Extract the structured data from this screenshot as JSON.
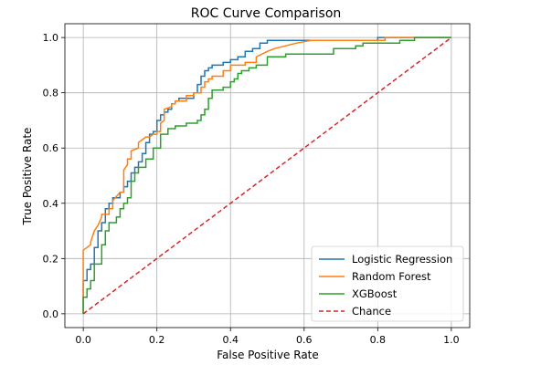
{
  "chart_data": {
    "type": "line",
    "title": "ROC Curve Comparison",
    "xlabel": "False Positive Rate",
    "ylabel": "True Positive Rate",
    "xlim": [
      -0.05,
      1.05
    ],
    "ylim": [
      -0.05,
      1.05
    ],
    "xticks": [
      0.0,
      0.2,
      0.4,
      0.6,
      0.8,
      1.0
    ],
    "yticks": [
      0.0,
      0.2,
      0.4,
      0.6,
      0.8,
      1.0
    ],
    "xtick_labels": [
      "0.0",
      "0.2",
      "0.4",
      "0.6",
      "0.8",
      "1.0"
    ],
    "ytick_labels": [
      "0.0",
      "0.2",
      "0.4",
      "0.6",
      "0.8",
      "1.0"
    ],
    "grid": true,
    "legend_position": "lower-right",
    "series": [
      {
        "name": "Logistic Regression",
        "color": "#1f77b4",
        "style": "solid",
        "x": [
          0.0,
          0.0,
          0.01,
          0.01,
          0.02,
          0.02,
          0.03,
          0.03,
          0.04,
          0.04,
          0.05,
          0.05,
          0.06,
          0.06,
          0.07,
          0.07,
          0.08,
          0.08,
          0.1,
          0.1,
          0.11,
          0.11,
          0.12,
          0.12,
          0.13,
          0.13,
          0.14,
          0.14,
          0.15,
          0.15,
          0.16,
          0.16,
          0.17,
          0.17,
          0.18,
          0.18,
          0.19,
          0.19,
          0.2,
          0.2,
          0.21,
          0.21,
          0.22,
          0.22,
          0.23,
          0.23,
          0.24,
          0.24,
          0.25,
          0.25,
          0.26,
          0.26,
          0.3,
          0.3,
          0.31,
          0.31,
          0.32,
          0.32,
          0.33,
          0.33,
          0.34,
          0.34,
          0.35,
          0.35,
          0.38,
          0.38,
          0.4,
          0.4,
          0.42,
          0.42,
          0.44,
          0.44,
          0.46,
          0.46,
          0.48,
          0.48,
          0.5,
          0.5,
          0.6,
          0.6,
          0.8,
          0.8,
          0.82,
          0.82,
          1.0
        ],
        "y": [
          0.0,
          0.12,
          0.12,
          0.16,
          0.16,
          0.18,
          0.18,
          0.24,
          0.24,
          0.3,
          0.3,
          0.33,
          0.33,
          0.38,
          0.38,
          0.4,
          0.4,
          0.42,
          0.42,
          0.44,
          0.44,
          0.46,
          0.46,
          0.48,
          0.48,
          0.51,
          0.51,
          0.53,
          0.53,
          0.55,
          0.55,
          0.58,
          0.58,
          0.62,
          0.62,
          0.65,
          0.65,
          0.66,
          0.66,
          0.7,
          0.7,
          0.72,
          0.72,
          0.73,
          0.73,
          0.74,
          0.74,
          0.76,
          0.76,
          0.77,
          0.77,
          0.78,
          0.78,
          0.8,
          0.8,
          0.83,
          0.83,
          0.86,
          0.86,
          0.88,
          0.88,
          0.89,
          0.89,
          0.9,
          0.9,
          0.91,
          0.91,
          0.92,
          0.92,
          0.93,
          0.93,
          0.95,
          0.95,
          0.96,
          0.96,
          0.98,
          0.98,
          0.99,
          0.99,
          0.99,
          0.99,
          1.0,
          1.0,
          1.0,
          1.0
        ]
      },
      {
        "name": "Random Forest",
        "color": "#ff7f0e",
        "style": "solid",
        "x": [
          0.0,
          0.0,
          0.02,
          0.02,
          0.03,
          0.04,
          0.05,
          0.05,
          0.07,
          0.07,
          0.08,
          0.08,
          0.1,
          0.11,
          0.11,
          0.12,
          0.12,
          0.13,
          0.13,
          0.15,
          0.15,
          0.16,
          0.17,
          0.18,
          0.19,
          0.2,
          0.2,
          0.21,
          0.21,
          0.22,
          0.22,
          0.24,
          0.24,
          0.25,
          0.25,
          0.28,
          0.28,
          0.3,
          0.3,
          0.32,
          0.32,
          0.33,
          0.33,
          0.34,
          0.34,
          0.35,
          0.35,
          0.38,
          0.38,
          0.4,
          0.4,
          0.44,
          0.44,
          0.47,
          0.47,
          0.5,
          0.52,
          0.55,
          0.58,
          0.62,
          0.65,
          0.8,
          0.82,
          0.82,
          0.85,
          0.88,
          1.0
        ],
        "y": [
          0.0,
          0.23,
          0.25,
          0.26,
          0.3,
          0.32,
          0.35,
          0.36,
          0.36,
          0.38,
          0.38,
          0.41,
          0.44,
          0.44,
          0.52,
          0.54,
          0.56,
          0.56,
          0.59,
          0.6,
          0.62,
          0.63,
          0.64,
          0.64,
          0.65,
          0.65,
          0.66,
          0.66,
          0.69,
          0.7,
          0.74,
          0.75,
          0.76,
          0.76,
          0.77,
          0.77,
          0.79,
          0.79,
          0.8,
          0.8,
          0.82,
          0.82,
          0.84,
          0.84,
          0.85,
          0.85,
          0.86,
          0.86,
          0.88,
          0.88,
          0.9,
          0.9,
          0.91,
          0.91,
          0.93,
          0.95,
          0.96,
          0.97,
          0.98,
          0.99,
          0.99,
          0.99,
          0.99,
          1.0,
          1.0,
          1.0,
          1.0
        ]
      },
      {
        "name": "XGBoost",
        "color": "#2ca02c",
        "style": "solid",
        "x": [
          0.0,
          0.0,
          0.01,
          0.01,
          0.02,
          0.02,
          0.03,
          0.03,
          0.05,
          0.05,
          0.06,
          0.06,
          0.07,
          0.07,
          0.09,
          0.09,
          0.1,
          0.1,
          0.11,
          0.11,
          0.12,
          0.12,
          0.13,
          0.13,
          0.14,
          0.14,
          0.15,
          0.15,
          0.17,
          0.17,
          0.19,
          0.19,
          0.21,
          0.21,
          0.23,
          0.23,
          0.25,
          0.25,
          0.28,
          0.28,
          0.31,
          0.31,
          0.32,
          0.32,
          0.33,
          0.33,
          0.34,
          0.34,
          0.35,
          0.35,
          0.38,
          0.38,
          0.4,
          0.4,
          0.41,
          0.41,
          0.42,
          0.42,
          0.43,
          0.43,
          0.45,
          0.45,
          0.47,
          0.47,
          0.5,
          0.5,
          0.55,
          0.55,
          0.68,
          0.68,
          0.74,
          0.74,
          0.76,
          0.76,
          0.79,
          0.79,
          0.86,
          0.86,
          0.88,
          0.88,
          0.9,
          0.9,
          1.0
        ],
        "y": [
          0.0,
          0.06,
          0.06,
          0.09,
          0.09,
          0.12,
          0.12,
          0.18,
          0.18,
          0.25,
          0.25,
          0.3,
          0.3,
          0.33,
          0.33,
          0.35,
          0.35,
          0.38,
          0.38,
          0.4,
          0.4,
          0.42,
          0.42,
          0.48,
          0.48,
          0.51,
          0.51,
          0.53,
          0.53,
          0.56,
          0.56,
          0.6,
          0.6,
          0.65,
          0.65,
          0.67,
          0.67,
          0.68,
          0.68,
          0.69,
          0.69,
          0.7,
          0.7,
          0.72,
          0.72,
          0.74,
          0.74,
          0.78,
          0.78,
          0.81,
          0.81,
          0.82,
          0.82,
          0.84,
          0.84,
          0.85,
          0.85,
          0.87,
          0.87,
          0.88,
          0.88,
          0.89,
          0.89,
          0.9,
          0.9,
          0.93,
          0.93,
          0.94,
          0.94,
          0.96,
          0.96,
          0.97,
          0.97,
          0.98,
          0.98,
          0.98,
          0.98,
          0.99,
          0.99,
          0.99,
          0.99,
          1.0,
          1.0
        ]
      },
      {
        "name": "Chance",
        "color": "#d62728",
        "style": "dashed",
        "x": [
          0.0,
          1.0
        ],
        "y": [
          0.0,
          1.0
        ]
      }
    ]
  }
}
